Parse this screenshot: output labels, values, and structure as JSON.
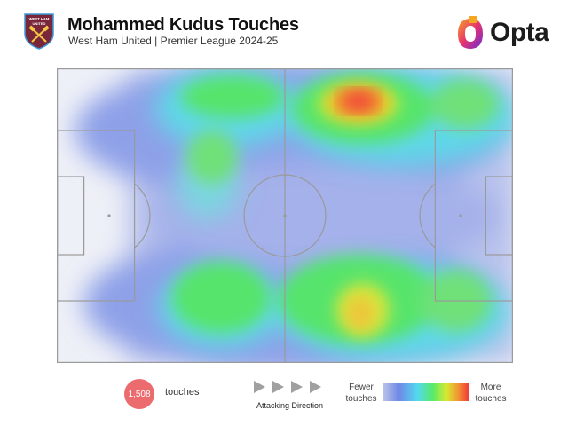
{
  "header": {
    "title": "Mohammed Kudus Touches",
    "subtitle": "West Ham United | Premier League 2024-25",
    "crest": {
      "lines": [
        "WEST HAM",
        "UNITED"
      ]
    },
    "brand": "Opta"
  },
  "legend": {
    "count": "1,508",
    "count_label": "touches",
    "direction_label": "Attacking Direction",
    "scale_low": "Fewer touches",
    "scale_high": "More touches"
  },
  "colors": {
    "pitch_lines": "#9a9a9a",
    "count_badge": "#ec6b6e",
    "heat_high": "#f23a36",
    "heat_low": "#6f88e6"
  }
}
